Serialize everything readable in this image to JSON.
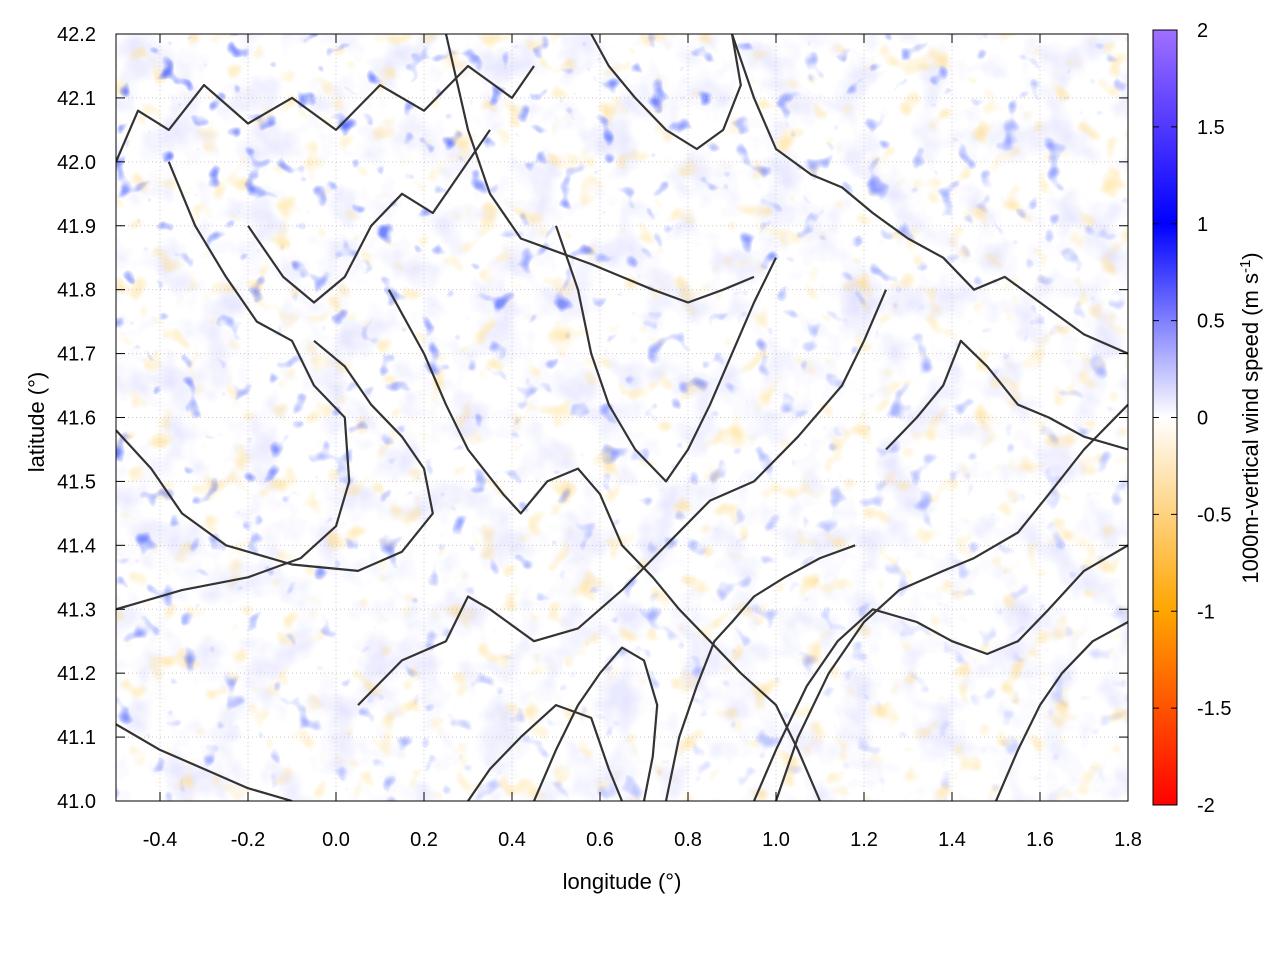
{
  "chart_data": {
    "type": "heatmap",
    "xlabel": "longitude (°)",
    "ylabel": "latitude (°)",
    "colorbar_label": "1000m-vertical wind speed (m s",
    "colorbar_label_sup": "-1",
    "colorbar_label_close": ")",
    "xlim": [
      -0.5,
      1.8
    ],
    "ylim": [
      41.0,
      42.2
    ],
    "clim": [
      -2,
      2
    ],
    "x_ticks": [
      -0.4,
      -0.2,
      0.0,
      0.2,
      0.4,
      0.6,
      0.8,
      1.0,
      1.2,
      1.4,
      1.6,
      1.8
    ],
    "x_tick_labels": [
      "-0.4",
      "-0.2",
      "0.0",
      "0.2",
      "0.4",
      "0.6",
      "0.8",
      "1.0",
      "1.2",
      "1.4",
      "1.6",
      "1.8"
    ],
    "y_ticks": [
      41.0,
      41.1,
      41.2,
      41.3,
      41.4,
      41.5,
      41.6,
      41.7,
      41.8,
      41.9,
      42.0,
      42.1,
      42.2
    ],
    "y_tick_labels": [
      "41.0",
      "41.1",
      "41.2",
      "41.3",
      "41.4",
      "41.5",
      "41.6",
      "41.7",
      "41.8",
      "41.9",
      "42.0",
      "42.1",
      "42.2"
    ],
    "colorbar_ticks": [
      -2,
      -1.5,
      -1,
      -0.5,
      0,
      0.5,
      1,
      1.5,
      2
    ],
    "colorbar_tick_labels": [
      "-2",
      "-1.5",
      "-1",
      "-0.5",
      "0",
      "0.5",
      "1",
      "1.5",
      "2"
    ],
    "colormap": [
      {
        "value": -2,
        "color": "#ff0000"
      },
      {
        "value": -1,
        "color": "#ffa500"
      },
      {
        "value": 0,
        "color": "#ffffff"
      },
      {
        "value": 1,
        "color": "#0000ff"
      },
      {
        "value": 2,
        "color": "#a070ff"
      }
    ],
    "grid": true,
    "contour_color": "#333333",
    "contours": [
      [
        [
          -0.5,
          42.0
        ],
        [
          -0.45,
          42.08
        ],
        [
          -0.38,
          42.05
        ],
        [
          -0.3,
          42.12
        ],
        [
          -0.2,
          42.06
        ],
        [
          -0.1,
          42.1
        ],
        [
          0.0,
          42.05
        ],
        [
          0.1,
          42.12
        ],
        [
          0.2,
          42.08
        ],
        [
          0.3,
          42.15
        ],
        [
          0.4,
          42.1
        ],
        [
          0.45,
          42.15
        ]
      ],
      [
        [
          -0.38,
          42.0
        ],
        [
          -0.32,
          41.9
        ],
        [
          -0.25,
          41.82
        ],
        [
          -0.18,
          41.75
        ],
        [
          -0.1,
          41.72
        ],
        [
          -0.05,
          41.65
        ],
        [
          0.02,
          41.6
        ],
        [
          0.03,
          41.5
        ],
        [
          0.0,
          41.43
        ],
        [
          -0.08,
          41.38
        ],
        [
          -0.2,
          41.35
        ],
        [
          -0.35,
          41.33
        ],
        [
          -0.5,
          41.3
        ]
      ],
      [
        [
          -0.5,
          41.58
        ],
        [
          -0.42,
          41.52
        ],
        [
          -0.35,
          41.45
        ],
        [
          -0.25,
          41.4
        ],
        [
          -0.1,
          41.37
        ],
        [
          0.05,
          41.36
        ],
        [
          0.15,
          41.39
        ],
        [
          0.22,
          41.45
        ],
        [
          0.2,
          41.52
        ],
        [
          0.15,
          41.57
        ],
        [
          0.08,
          41.62
        ],
        [
          0.02,
          41.68
        ],
        [
          -0.05,
          41.72
        ]
      ],
      [
        [
          0.12,
          41.8
        ],
        [
          0.2,
          41.7
        ],
        [
          0.25,
          41.62
        ],
        [
          0.3,
          41.55
        ],
        [
          0.38,
          41.48
        ],
        [
          0.42,
          41.45
        ],
        [
          0.48,
          41.5
        ],
        [
          0.55,
          41.52
        ],
        [
          0.6,
          41.48
        ],
        [
          0.65,
          41.4
        ],
        [
          0.72,
          41.35
        ],
        [
          0.78,
          41.3
        ],
        [
          0.85,
          41.25
        ],
        [
          0.92,
          41.2
        ],
        [
          1.0,
          41.15
        ],
        [
          1.05,
          41.08
        ],
        [
          1.1,
          41.0
        ]
      ],
      [
        [
          0.05,
          41.15
        ],
        [
          0.15,
          41.22
        ],
        [
          0.25,
          41.25
        ],
        [
          0.3,
          41.32
        ],
        [
          0.35,
          41.3
        ],
        [
          0.45,
          41.25
        ],
        [
          0.55,
          41.27
        ],
        [
          0.65,
          41.33
        ],
        [
          0.75,
          41.4
        ],
        [
          0.85,
          41.47
        ],
        [
          0.95,
          41.5
        ],
        [
          1.05,
          41.57
        ],
        [
          1.15,
          41.65
        ],
        [
          1.2,
          41.72
        ],
        [
          1.25,
          41.8
        ]
      ],
      [
        [
          0.25,
          42.2
        ],
        [
          0.3,
          42.05
        ],
        [
          0.35,
          41.95
        ],
        [
          0.42,
          41.88
        ],
        [
          0.5,
          41.86
        ],
        [
          0.58,
          41.84
        ],
        [
          0.65,
          41.82
        ],
        [
          0.72,
          41.8
        ],
        [
          0.8,
          41.78
        ],
        [
          0.88,
          41.8
        ],
        [
          0.95,
          41.82
        ]
      ],
      [
        [
          0.9,
          42.2
        ],
        [
          0.95,
          42.1
        ],
        [
          1.0,
          42.02
        ],
        [
          1.08,
          41.98
        ],
        [
          1.15,
          41.96
        ],
        [
          1.22,
          41.92
        ],
        [
          1.3,
          41.88
        ],
        [
          1.38,
          41.85
        ],
        [
          1.45,
          41.8
        ],
        [
          1.52,
          41.82
        ],
        [
          1.6,
          41.78
        ],
        [
          1.7,
          41.73
        ],
        [
          1.8,
          41.7
        ]
      ],
      [
        [
          1.5,
          41.0
        ],
        [
          1.55,
          41.08
        ],
        [
          1.6,
          41.15
        ],
        [
          1.65,
          41.2
        ],
        [
          1.72,
          41.25
        ],
        [
          1.8,
          41.28
        ]
      ],
      [
        [
          1.0,
          41.0
        ],
        [
          1.05,
          41.1
        ],
        [
          1.12,
          41.2
        ],
        [
          1.2,
          41.28
        ],
        [
          1.28,
          41.33
        ],
        [
          1.38,
          41.36
        ],
        [
          1.45,
          41.38
        ],
        [
          1.55,
          41.42
        ],
        [
          1.62,
          41.48
        ],
        [
          1.7,
          41.55
        ],
        [
          1.8,
          41.62
        ]
      ],
      [
        [
          0.95,
          41.0
        ],
        [
          1.0,
          41.08
        ],
        [
          1.07,
          41.18
        ],
        [
          1.14,
          41.25
        ],
        [
          1.22,
          41.3
        ],
        [
          1.32,
          41.28
        ],
        [
          1.4,
          41.25
        ],
        [
          1.48,
          41.23
        ],
        [
          1.55,
          41.25
        ],
        [
          1.62,
          41.3
        ],
        [
          1.7,
          41.36
        ],
        [
          1.8,
          41.4
        ]
      ],
      [
        [
          -0.5,
          41.12
        ],
        [
          -0.4,
          41.08
        ],
        [
          -0.3,
          41.05
        ],
        [
          -0.2,
          41.02
        ],
        [
          -0.1,
          41.0
        ]
      ],
      [
        [
          0.3,
          41.0
        ],
        [
          0.35,
          41.05
        ],
        [
          0.42,
          41.1
        ],
        [
          0.5,
          41.15
        ],
        [
          0.58,
          41.13
        ],
        [
          0.62,
          41.05
        ],
        [
          0.65,
          41.0
        ]
      ],
      [
        [
          0.45,
          41.0
        ],
        [
          0.5,
          41.08
        ],
        [
          0.55,
          41.15
        ],
        [
          0.6,
          41.2
        ],
        [
          0.65,
          41.24
        ],
        [
          0.7,
          41.22
        ],
        [
          0.73,
          41.15
        ],
        [
          0.72,
          41.07
        ],
        [
          0.7,
          41.0
        ]
      ],
      [
        [
          0.75,
          41.0
        ],
        [
          0.78,
          41.1
        ],
        [
          0.82,
          41.18
        ],
        [
          0.86,
          41.25
        ],
        [
          0.9,
          41.28
        ],
        [
          0.95,
          41.32
        ],
        [
          1.02,
          41.35
        ],
        [
          1.1,
          41.38
        ],
        [
          1.18,
          41.4
        ]
      ],
      [
        [
          -0.2,
          41.9
        ],
        [
          -0.12,
          41.82
        ],
        [
          -0.05,
          41.78
        ],
        [
          0.02,
          41.82
        ],
        [
          0.08,
          41.9
        ],
        [
          0.15,
          41.95
        ],
        [
          0.22,
          41.92
        ],
        [
          0.28,
          41.98
        ],
        [
          0.35,
          42.05
        ]
      ],
      [
        [
          0.58,
          42.2
        ],
        [
          0.62,
          42.15
        ],
        [
          0.68,
          42.1
        ],
        [
          0.75,
          42.05
        ],
        [
          0.82,
          42.02
        ],
        [
          0.88,
          42.05
        ],
        [
          0.92,
          42.12
        ],
        [
          0.9,
          42.2
        ]
      ],
      [
        [
          0.5,
          41.9
        ],
        [
          0.55,
          41.8
        ],
        [
          0.58,
          41.7
        ],
        [
          0.62,
          41.62
        ],
        [
          0.68,
          41.55
        ],
        [
          0.75,
          41.5
        ],
        [
          0.8,
          41.55
        ],
        [
          0.85,
          41.62
        ],
        [
          0.9,
          41.7
        ],
        [
          0.95,
          41.78
        ],
        [
          1.0,
          41.85
        ]
      ],
      [
        [
          1.25,
          41.55
        ],
        [
          1.32,
          41.6
        ],
        [
          1.38,
          41.65
        ],
        [
          1.42,
          41.72
        ],
        [
          1.48,
          41.68
        ],
        [
          1.55,
          41.62
        ],
        [
          1.62,
          41.6
        ],
        [
          1.7,
          41.57
        ],
        [
          1.8,
          41.55
        ]
      ]
    ]
  }
}
